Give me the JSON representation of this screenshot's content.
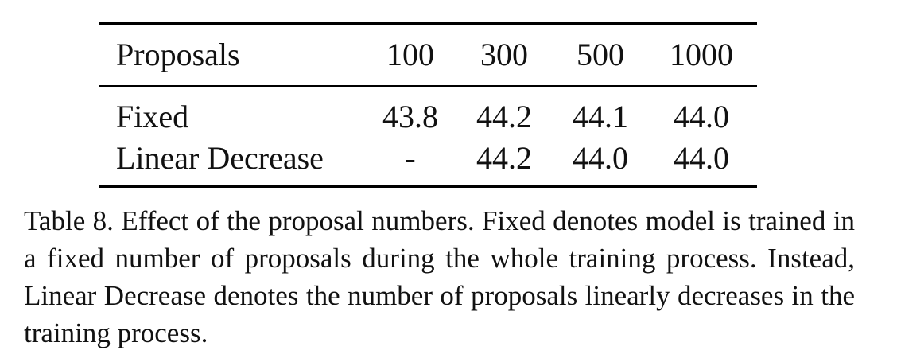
{
  "table": {
    "header": {
      "label": "Proposals",
      "columns": [
        "100",
        "300",
        "500",
        "1000"
      ]
    },
    "rows": [
      {
        "label": "Fixed",
        "values": [
          "43.8",
          "44.2",
          "44.1",
          "44.0"
        ]
      },
      {
        "label": "Linear Decrease",
        "values": [
          "-",
          "44.2",
          "44.0",
          "44.0"
        ]
      }
    ]
  },
  "caption": {
    "text": "Table 8. Effect of the proposal numbers. Fixed denotes model is trained in a fixed number of proposals during the whole training process. Instead, Linear Decrease denotes the number of proposals linearly decreases in the training process."
  }
}
